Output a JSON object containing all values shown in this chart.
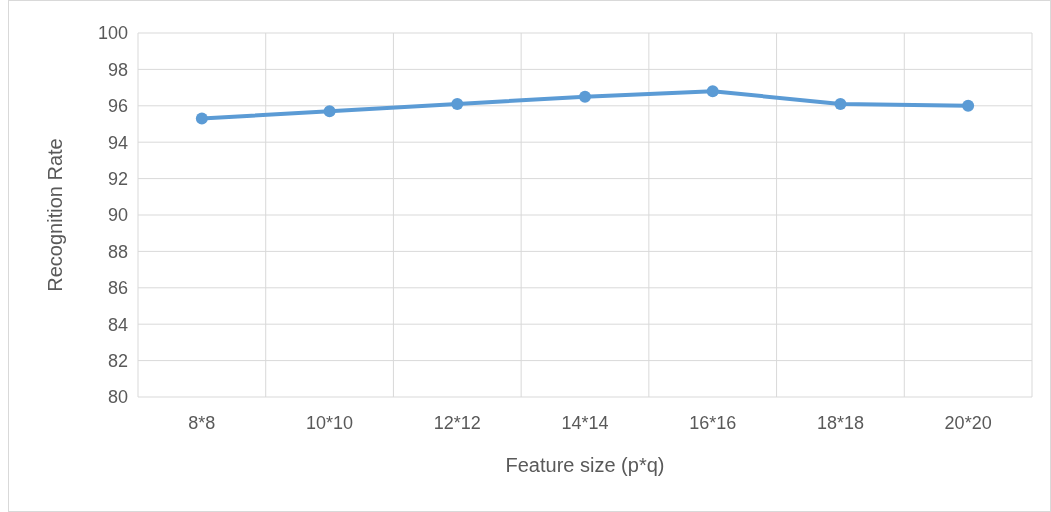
{
  "chart_data": {
    "type": "line",
    "xlabel": "Feature size (p*q)",
    "ylabel": "Recognition Rate",
    "categories": [
      "8*8",
      "10*10",
      "12*12",
      "14*14",
      "16*16",
      "18*18",
      "20*20"
    ],
    "series": [
      {
        "color": "#5b9bd5",
        "values": [
          95.3,
          95.7,
          96.1,
          96.5,
          96.8,
          96.1,
          96.0
        ]
      }
    ],
    "ylim": [
      80,
      100
    ],
    "yticks": [
      80,
      82,
      84,
      86,
      88,
      90,
      92,
      94,
      96,
      98,
      100
    ],
    "grid": true,
    "marker": "circle",
    "line_style": "solid"
  }
}
